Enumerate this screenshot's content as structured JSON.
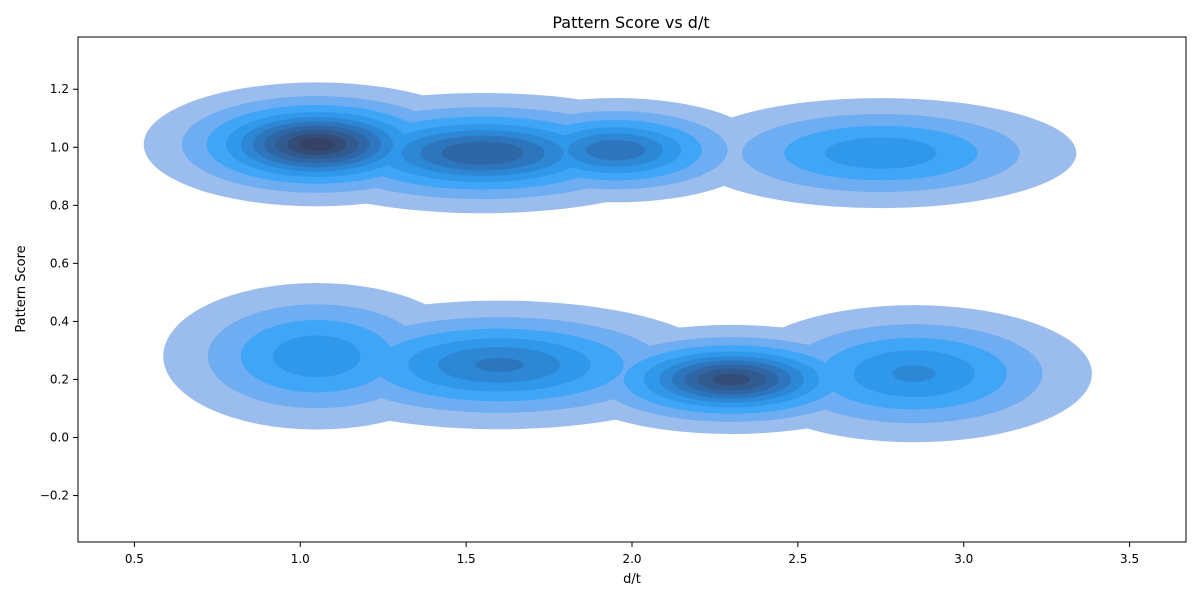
{
  "chart_data": {
    "type": "kde_filled_contour",
    "title": "Pattern Score vs d/t",
    "xlabel": "d/t",
    "ylabel": "Pattern Score",
    "xlim": [
      0.33,
      3.67
    ],
    "ylim": [
      -0.36,
      1.38
    ],
    "xticks": [
      0.5,
      1.0,
      1.5,
      2.0,
      2.5,
      3.0,
      3.5
    ],
    "xtick_labels": [
      "0.5",
      "1.0",
      "1.5",
      "2.0",
      "2.5",
      "3.0",
      "3.5"
    ],
    "yticks": [
      -0.2,
      0.0,
      0.2,
      0.4,
      0.6,
      0.8,
      1.0,
      1.2
    ],
    "ytick_labels": [
      "−0.2",
      "0.0",
      "0.2",
      "0.4",
      "0.6",
      "0.8",
      "1.0",
      "1.2"
    ],
    "grid": false,
    "legend": "none",
    "colors": [
      "#9bbdee",
      "#6fadf2",
      "#3fa5f7",
      "#2f98ea",
      "#2d87d4",
      "#2d76bd",
      "#2f67a6",
      "#315a8f",
      "#334d78",
      "#354265"
    ],
    "density_clusters": [
      {
        "x": 1.05,
        "y": 1.01,
        "sx": 0.22,
        "sy": 0.09,
        "weight": 1.0
      },
      {
        "x": 1.55,
        "y": 0.98,
        "sx": 0.28,
        "sy": 0.09,
        "weight": 0.85
      },
      {
        "x": 1.95,
        "y": 0.99,
        "sx": 0.2,
        "sy": 0.08,
        "weight": 0.75
      },
      {
        "x": 2.75,
        "y": 0.98,
        "sx": 0.28,
        "sy": 0.09,
        "weight": 0.55
      },
      {
        "x": 1.05,
        "y": 0.28,
        "sx": 0.22,
        "sy": 0.12,
        "weight": 0.55
      },
      {
        "x": 1.6,
        "y": 0.25,
        "sx": 0.3,
        "sy": 0.1,
        "weight": 0.7
      },
      {
        "x": 2.3,
        "y": 0.2,
        "sx": 0.22,
        "sy": 0.08,
        "weight": 0.95
      },
      {
        "x": 2.85,
        "y": 0.22,
        "sx": 0.25,
        "sy": 0.11,
        "weight": 0.6
      }
    ]
  }
}
